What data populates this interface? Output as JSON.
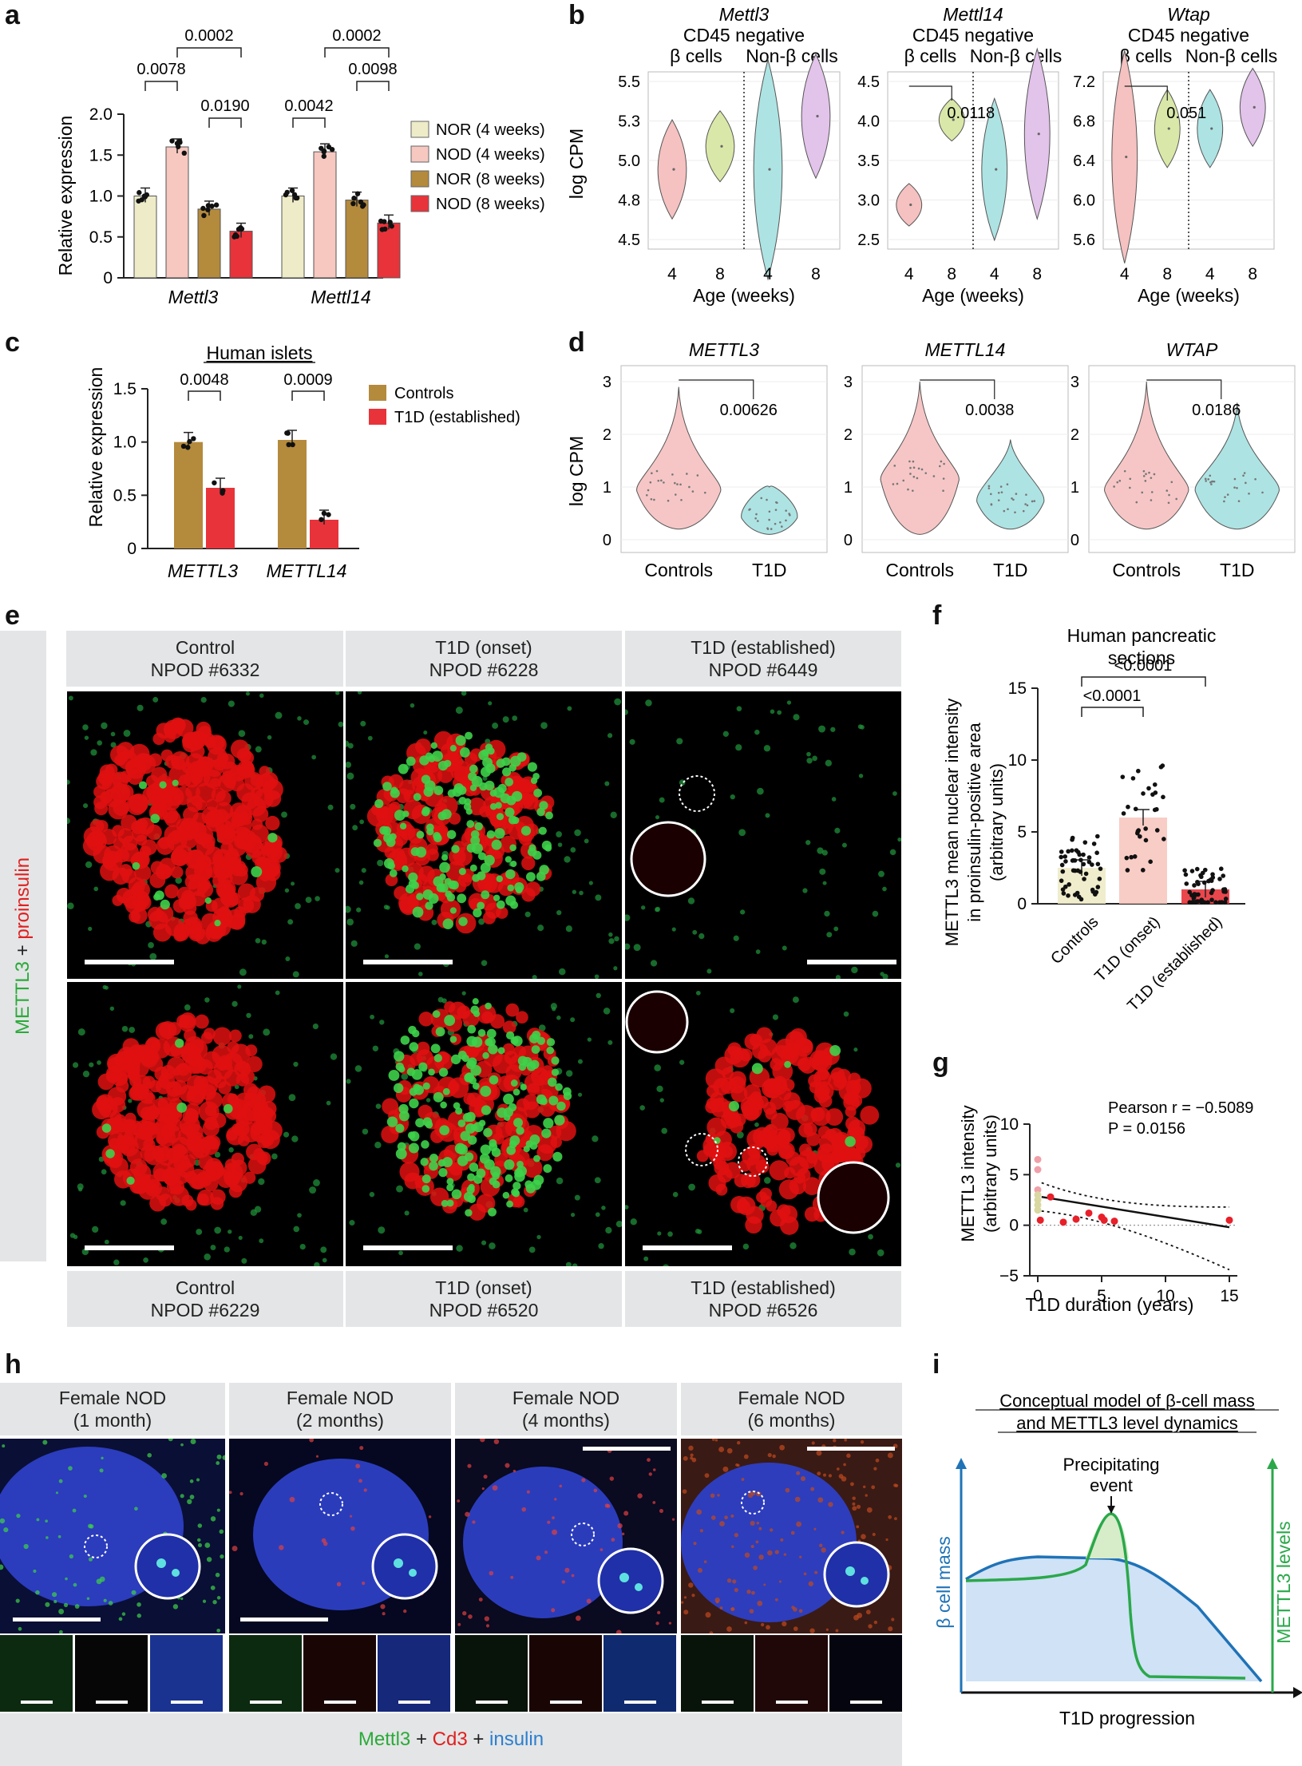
{
  "panel_labels": {
    "a": "a",
    "b": "b",
    "c": "c",
    "d": "d",
    "e": "e",
    "f": "f",
    "g": "g",
    "h": "h",
    "i": "i"
  },
  "chart_data": [
    {
      "id": "a",
      "type": "bar",
      "ylabel": "Relative expression",
      "ylim": [
        0,
        2.0
      ],
      "yticks": [
        "0",
        "0.5",
        "1.0",
        "1.5",
        "2.0"
      ],
      "groups": [
        "Mettl3",
        "Mettl14"
      ],
      "series": [
        {
          "name": "NOR (4 weeks)",
          "color": "#eeebc8",
          "values": [
            1.0,
            1.0
          ]
        },
        {
          "name": "NOD (4 weeks)",
          "color": "#f6c8c0",
          "values": [
            1.6,
            1.54
          ]
        },
        {
          "name": "NOR (8 weeks)",
          "color": "#b48a3c",
          "values": [
            0.84,
            0.95
          ]
        },
        {
          "name": "NOD (8 weeks)",
          "color": "#e8333a",
          "values": [
            0.57,
            0.67
          ]
        }
      ],
      "pvalues": [
        "0.0002",
        "0.0078",
        "0.0190",
        "0.0002",
        "0.0042",
        "0.0098"
      ]
    },
    {
      "id": "b",
      "type": "violin",
      "ylabel": "log CPM",
      "xlabel": "Age (weeks)",
      "subpanels": [
        {
          "gene": "Mettl3",
          "header": "CD45 negative",
          "groups": [
            "β cells",
            "Non-β cells"
          ],
          "ticks": [
            "5.5",
            "5.3",
            "5.0",
            "4.8",
            "4.5"
          ],
          "x": [
            "4",
            "8",
            "4",
            "8"
          ],
          "pvalue": ""
        },
        {
          "gene": "Mettl14",
          "header": "CD45 negative",
          "groups": [
            "β cells",
            "Non-β cells"
          ],
          "ticks": [
            "4.5",
            "4.0",
            "3.5",
            "3.0",
            "2.5"
          ],
          "x": [
            "4",
            "8",
            "4",
            "8"
          ],
          "pvalue": "0.0118"
        },
        {
          "gene": "Wtap",
          "header": "CD45 negative",
          "groups": [
            "β cells",
            "Non-β cells"
          ],
          "ticks": [
            "7.2",
            "6.8",
            "6.4",
            "6.0",
            "5.6"
          ],
          "x": [
            "4",
            "8",
            "4",
            "8"
          ],
          "pvalue": "0.051"
        }
      ]
    },
    {
      "id": "c",
      "type": "bar",
      "title": "Human islets",
      "ylabel": "Relative expression",
      "ylim": [
        0,
        1.5
      ],
      "yticks": [
        "0",
        "0.5",
        "1.0",
        "1.5"
      ],
      "groups": [
        "METTL3",
        "METTL14"
      ],
      "series": [
        {
          "name": "Controls",
          "color": "#b48a3c",
          "values": [
            1.0,
            1.02
          ]
        },
        {
          "name": "T1D (established)",
          "color": "#e8333a",
          "values": [
            0.57,
            0.27
          ]
        }
      ],
      "pvalues": [
        "0.0048",
        "0.0009"
      ]
    },
    {
      "id": "d",
      "type": "violin",
      "ylabel": "log CPM",
      "subpanels": [
        {
          "gene": "METTL3",
          "ticks": [
            "3",
            "2",
            "1",
            "0"
          ],
          "x": [
            "Controls",
            "T1D"
          ],
          "pvalue": "0.00626"
        },
        {
          "gene": "METTL14",
          "ticks": [
            "3",
            "2",
            "1",
            "0"
          ],
          "x": [
            "Controls",
            "T1D"
          ],
          "pvalue": "0.0038"
        },
        {
          "gene": "WTAP",
          "ticks": [
            "3",
            "2",
            "1",
            "0"
          ],
          "x": [
            "Controls",
            "T1D"
          ],
          "pvalue": "0.0186"
        }
      ]
    },
    {
      "id": "f",
      "type": "bar",
      "title": "Human pancreatic sections",
      "ylabel": "METTL3 mean nuclear intensity in proinsulin-positive area (arbitrary units)",
      "ylim": [
        0,
        15
      ],
      "yticks": [
        "0",
        "5",
        "10",
        "15"
      ],
      "categories": [
        "Controls",
        "T1D (onset)",
        "T1D (established)"
      ],
      "values": [
        2.5,
        6.0,
        1.0
      ],
      "pvalues": [
        "<0.0001",
        "<0.0001"
      ]
    },
    {
      "id": "g",
      "type": "scatter",
      "xlabel": "T1D duration (years)",
      "ylabel": "METTL3 intensity (arbitrary units)",
      "xlim": [
        0,
        15
      ],
      "ylim": [
        -5,
        10
      ],
      "xticks": [
        "0",
        "5",
        "10",
        "15"
      ],
      "yticks": [
        "10",
        "5",
        "0",
        "−5"
      ],
      "stat_r": "Pearson r = −0.5089",
      "stat_p": "P = 0.0156",
      "points": [
        [
          0,
          6.5
        ],
        [
          0,
          5.5
        ],
        [
          0,
          3.5
        ],
        [
          0,
          3.0
        ],
        [
          0,
          2.5
        ],
        [
          0,
          2.0
        ],
        [
          0,
          1.5
        ],
        [
          0.2,
          0.5
        ],
        [
          1,
          2.8
        ],
        [
          2,
          0.3
        ],
        [
          3,
          0.6
        ],
        [
          4,
          1.2
        ],
        [
          5,
          0.8
        ],
        [
          5.2,
          0.5
        ],
        [
          6,
          0.4
        ],
        [
          15,
          0.5
        ]
      ]
    },
    {
      "id": "i",
      "type": "area",
      "title": "Conceptual model of β-cell mass and METTL3 level dynamics",
      "xlabel": "T1D progression",
      "ylabel_left": "β cell mass",
      "ylabel_right": "METTL3 levels",
      "annotation": "Precipitating event"
    }
  ],
  "panel_e": {
    "side_label_green": "METTL3",
    "side_label_plus": " + ",
    "side_label_red": "proinsulin",
    "top_headers": [
      "Control\nNPOD #6332",
      "T1D (onset)\nNPOD #6228",
      "T1D (established)\nNPOD #6449"
    ],
    "bottom_headers": [
      "Control\nNPOD #6229",
      "T1D (onset)\nNPOD #6520",
      "T1D (established)\nNPOD #6526"
    ]
  },
  "panel_h": {
    "headers": [
      "Female NOD\n(1 month)",
      "Female NOD\n(2 months)",
      "Female NOD\n(4 months)",
      "Female NOD\n(6 months)"
    ],
    "caption_green": "Mettl3",
    "caption_plus1": " + ",
    "caption_red": "Cd3",
    "caption_plus2": " + ",
    "caption_blue": "insulin"
  }
}
